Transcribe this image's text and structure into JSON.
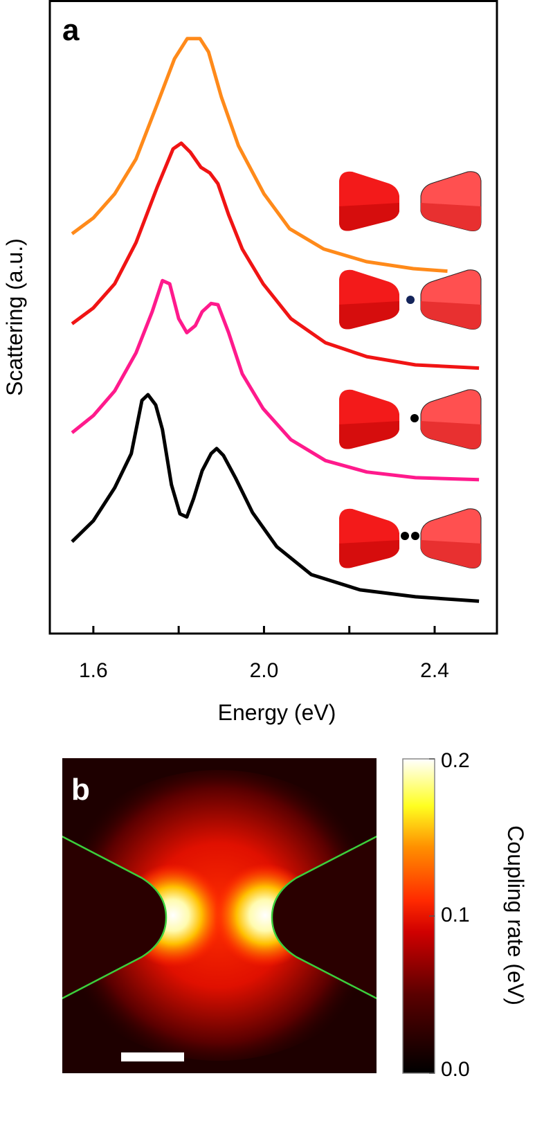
{
  "chart_data": [
    {
      "type": "line",
      "panel_label": "a",
      "xlabel": "Energy (eV)",
      "ylabel": "Scattering (a.u.)",
      "xlim": [
        1.498,
        2.546
      ],
      "xticks": [
        1.6,
        {
          "value": 2.0,
          "label": "2.0"
        },
        2.4
      ],
      "xminorticks": [
        1.8,
        2.2
      ],
      "ylim": [
        0,
        100
      ],
      "series": [
        {
          "name": "orange",
          "color": "#ff8a1a",
          "x": [
            1.55,
            1.6,
            1.65,
            1.7,
            1.75,
            1.79,
            1.82,
            1.85,
            1.87,
            1.9,
            1.94,
            2.0,
            2.06,
            2.14,
            2.24,
            2.35,
            2.43
          ],
          "values": [
            63.1,
            65.6,
            69.4,
            74.9,
            83.6,
            90.7,
            93.9,
            93.9,
            91.8,
            84.7,
            77.0,
            69.4,
            63.9,
            60.7,
            58.7,
            57.6,
            57.2
          ]
        },
        {
          "name": "red",
          "color": "#f01414",
          "x": [
            1.55,
            1.6,
            1.65,
            1.7,
            1.75,
            1.787,
            1.806,
            1.827,
            1.852,
            1.873,
            1.892,
            1.917,
            1.949,
            1.998,
            2.063,
            2.144,
            2.241,
            2.355,
            2.504
          ],
          "values": [
            48.9,
            51.4,
            55.2,
            61.7,
            70.5,
            76.5,
            77.4,
            76.0,
            73.6,
            72.7,
            71.0,
            66.1,
            60.7,
            55.2,
            49.7,
            45.9,
            43.7,
            42.4,
            41.9
          ]
        },
        {
          "name": "pink",
          "color": "#ff1a8c",
          "x": [
            1.55,
            1.6,
            1.65,
            1.7,
            1.738,
            1.762,
            1.779,
            1.8,
            1.819,
            1.839,
            1.855,
            1.876,
            1.892,
            1.917,
            1.949,
            1.998,
            2.063,
            2.144,
            2.241,
            2.355,
            2.504
          ],
          "values": [
            31.7,
            34.4,
            38.3,
            44.3,
            50.8,
            55.7,
            55.2,
            49.7,
            47.5,
            48.6,
            50.8,
            52.1,
            51.9,
            47.5,
            41.0,
            35.5,
            30.6,
            27.3,
            25.5,
            24.6,
            24.3
          ]
        },
        {
          "name": "black",
          "color": "#000000",
          "x": [
            1.55,
            1.6,
            1.65,
            1.689,
            1.714,
            1.728,
            1.746,
            1.762,
            1.783,
            1.803,
            1.819,
            1.835,
            1.855,
            1.876,
            1.889,
            1.905,
            1.933,
            1.973,
            2.03,
            2.111,
            2.225,
            2.355,
            2.504
          ],
          "values": [
            14.5,
            17.8,
            23.0,
            28.4,
            36.8,
            37.7,
            36.1,
            32.2,
            23.5,
            18.9,
            18.4,
            21.3,
            25.7,
            28.4,
            29.2,
            28.1,
            24.6,
            19.1,
            13.7,
            9.3,
            6.9,
            5.8,
            5.1
          ]
        }
      ]
    },
    {
      "type": "heatmap",
      "panel_label": "b",
      "colorbar_label": "Coupling rate (eV)",
      "clim": [
        0,
        0.2
      ],
      "cticks": [
        {
          "value": 0,
          "label": "0.0"
        },
        0.1,
        0.2
      ]
    }
  ]
}
